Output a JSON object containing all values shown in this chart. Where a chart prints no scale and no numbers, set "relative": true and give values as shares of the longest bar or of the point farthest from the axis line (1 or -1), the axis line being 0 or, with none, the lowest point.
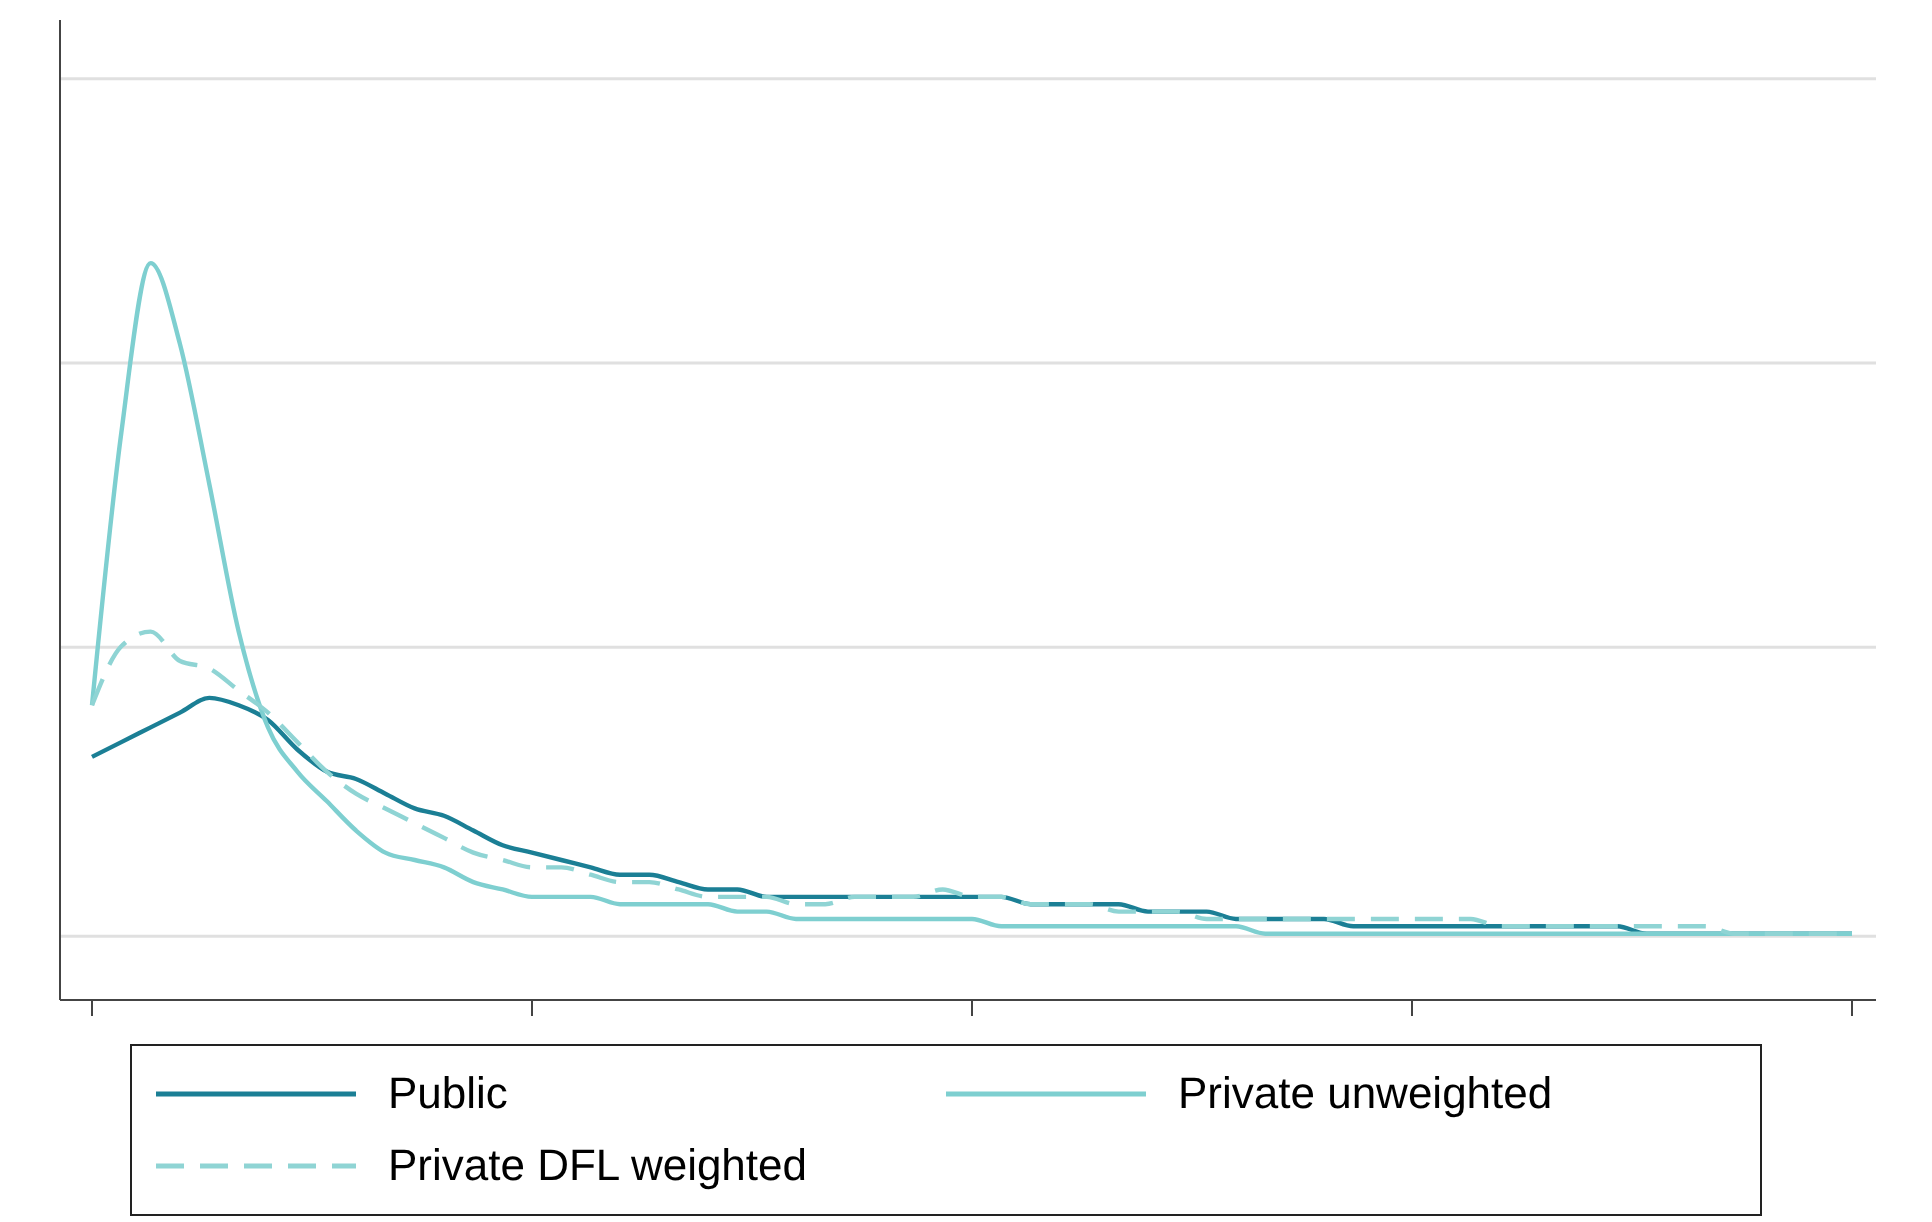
{
  "chart_data": {
    "type": "line",
    "relative": true,
    "grid": "y",
    "legend": "bottom",
    "categories": [
      null,
      null,
      null,
      null,
      null,
      null,
      null,
      null,
      null,
      null,
      null,
      null,
      null,
      null,
      null,
      null,
      null,
      null,
      null,
      null,
      null,
      null,
      null,
      null,
      null,
      null,
      null,
      null,
      null,
      null,
      null,
      null,
      null,
      null,
      null,
      null,
      null,
      null,
      null,
      null,
      null,
      null,
      null,
      null,
      null,
      null,
      null,
      null,
      null,
      null,
      null,
      null,
      null,
      null,
      null,
      null,
      null,
      null,
      null,
      null,
      null
    ],
    "series": [
      {
        "name": "Public",
        "color": "#1b7f95",
        "line_style": "solid",
        "values": [
          0.33,
          0.35,
          0.37,
          0.39,
          0.41,
          0.4,
          0.38,
          0.34,
          0.31,
          0.3,
          0.28,
          0.26,
          0.25,
          0.23,
          0.21,
          0.2,
          0.19,
          0.18,
          0.17,
          0.17,
          0.16,
          0.15,
          0.15,
          0.14,
          0.14,
          0.14,
          0.14,
          0.14,
          0.14,
          0.14,
          0.14,
          0.14,
          0.13,
          0.13,
          0.13,
          0.13,
          0.12,
          0.12,
          0.12,
          0.11,
          0.11,
          0.11,
          0.11,
          0.1,
          0.1,
          0.1,
          0.1,
          0.1,
          0.1,
          0.1,
          0.1,
          0.1,
          0.1,
          0.09,
          0.09,
          0.09,
          0.09,
          0.09,
          0.09,
          0.09,
          0.09
        ]
      },
      {
        "name": "Private unweighted",
        "color": "#7ecfd0",
        "line_style": "solid",
        "values": [
          0.4,
          0.77,
          1,
          0.89,
          0.7,
          0.5,
          0.37,
          0.31,
          0.27,
          0.23,
          0.2,
          0.19,
          0.18,
          0.16,
          0.15,
          0.14,
          0.14,
          0.14,
          0.13,
          0.13,
          0.13,
          0.13,
          0.12,
          0.12,
          0.11,
          0.11,
          0.11,
          0.11,
          0.11,
          0.11,
          0.11,
          0.1,
          0.1,
          0.1,
          0.1,
          0.1,
          0.1,
          0.1,
          0.1,
          0.1,
          0.09,
          0.09,
          0.09,
          0.09,
          0.09,
          0.09,
          0.09,
          0.09,
          0.09,
          0.09,
          0.09,
          0.09,
          0.09,
          0.09,
          0.09,
          0.09,
          0.09,
          0.09,
          0.09,
          0.09,
          0.09
        ]
      },
      {
        "name": "Private DFL weighted",
        "color": "#8fd4d4",
        "line_style": "dashed",
        "values": [
          0.4,
          0.48,
          0.5,
          0.46,
          0.45,
          0.42,
          0.39,
          0.35,
          0.31,
          0.28,
          0.26,
          0.24,
          0.22,
          0.2,
          0.19,
          0.18,
          0.18,
          0.17,
          0.16,
          0.16,
          0.15,
          0.14,
          0.14,
          0.14,
          0.13,
          0.13,
          0.14,
          0.14,
          0.14,
          0.15,
          0.14,
          0.14,
          0.13,
          0.13,
          0.13,
          0.12,
          0.12,
          0.12,
          0.11,
          0.11,
          0.11,
          0.11,
          0.11,
          0.11,
          0.11,
          0.11,
          0.11,
          0.11,
          0.1,
          0.1,
          0.1,
          0.1,
          0.1,
          0.1,
          0.1,
          0.1,
          0.09,
          0.09,
          0.09,
          0.09,
          0.09
        ]
      }
    ]
  }
}
